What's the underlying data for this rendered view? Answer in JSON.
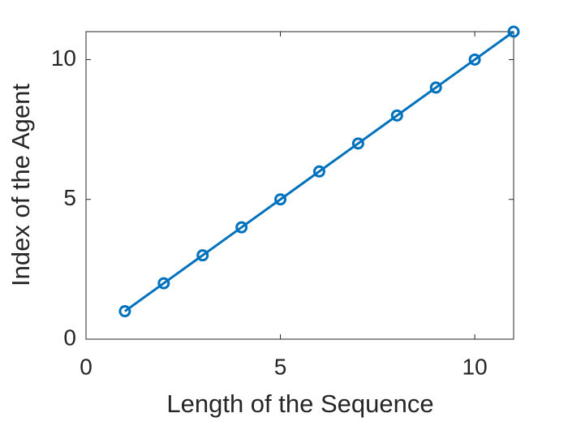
{
  "chart_data": {
    "type": "line",
    "xlabel": "Length of the Sequence",
    "ylabel": "Index of the Agent",
    "x": [
      1,
      2,
      3,
      4,
      5,
      6,
      7,
      8,
      9,
      10,
      11
    ],
    "series": [
      {
        "color": "#0072bd",
        "values": [
          1,
          2,
          3,
          4,
          5,
          6,
          7,
          8,
          9,
          10,
          11
        ]
      }
    ],
    "xlim": [
      0,
      11
    ],
    "ylim": [
      0,
      11
    ],
    "xticks": [
      0,
      5,
      10
    ],
    "yticks": [
      0,
      5,
      10
    ],
    "marker": "circle",
    "grid": false
  }
}
